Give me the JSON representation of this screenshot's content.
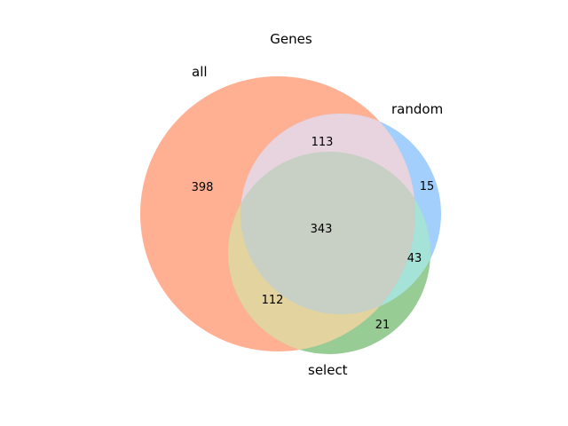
{
  "title": "Genes",
  "sets": [
    {
      "name": "all",
      "color": "#FFB093"
    },
    {
      "name": "random",
      "color": "#A3CFFC"
    },
    {
      "name": "select",
      "color": "#98CC95"
    }
  ],
  "regions": {
    "all_only": "398",
    "random_only": "15",
    "select_only": "21",
    "all_random": "113",
    "all_select": "112",
    "random_select": "43",
    "all_random_select": "343"
  },
  "overlap_colors": {
    "all_random": "#E8D4DF",
    "all_select": "#E2D39F",
    "random_select": "#A5E2D7",
    "all_random_select": "#C8CFC4"
  }
}
